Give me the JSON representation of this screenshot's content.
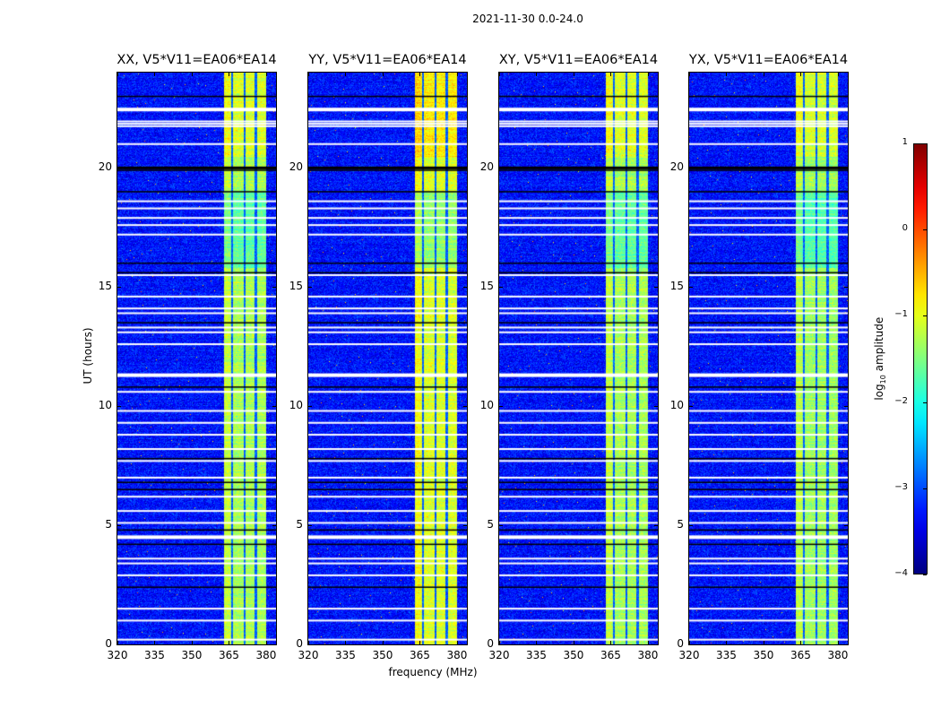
{
  "suptitle": "2021-11-30 0.0-24.0",
  "chart_data": {
    "type": "heatmap",
    "panels": [
      {
        "title": "XX, V5*V11=EA06*EA14",
        "band_boost": 0.0
      },
      {
        "title": "YY, V5*V11=EA06*EA14",
        "band_boost": 0.25
      },
      {
        "title": "XY, V5*V11=EA06*EA14",
        "band_boost": 0.0
      },
      {
        "title": "YX, V5*V11=EA06*EA14",
        "band_boost": -0.05
      }
    ],
    "xlabel": "frequency (MHz)",
    "ylabel": "UT (hours)",
    "xlim": [
      320,
      384
    ],
    "ylim": [
      0,
      24
    ],
    "xticks": [
      "320",
      "335",
      "350",
      "365",
      "380"
    ],
    "xtick_values": [
      320,
      335,
      350,
      365,
      380
    ],
    "yticks": [
      "0",
      "5",
      "10",
      "15",
      "20"
    ],
    "ytick_values": [
      0,
      5,
      10,
      15,
      20
    ],
    "colorbar": {
      "label_prefix": "log",
      "label_sub": "10",
      "label_suffix": " amplitude",
      "range": [
        -4,
        1
      ],
      "ticks": [
        "−4",
        "−3",
        "−2",
        "−1",
        "0",
        "1"
      ],
      "tick_values": [
        -4,
        -3,
        -2,
        -1,
        0,
        1
      ],
      "colormap": "jet"
    },
    "background_log_amplitude": -3.3,
    "band": {
      "start_mhz": 363,
      "end_mhz": 380,
      "log_amplitude": -1.3
    },
    "band_gaps_mhz": [
      366.3,
      371.3,
      375.8
    ],
    "flagged_white_hours": [
      22.45,
      21.95,
      21.85,
      21.75,
      21.0,
      18.6,
      18.3,
      17.9,
      17.6,
      17.2,
      15.5,
      14.6,
      14.1,
      13.9,
      13.3,
      13.1,
      12.6,
      11.3,
      10.6,
      9.8,
      9.3,
      8.8,
      8.2,
      7.7,
      7.0,
      6.2,
      5.6,
      5.1,
      4.5,
      3.6,
      3.4,
      2.9,
      1.5,
      1.0,
      0.2
    ],
    "flagged_black_hours": [
      23.0,
      20.0,
      19.9,
      19.0,
      16.0,
      15.6,
      13.5,
      10.8,
      7.8,
      6.8,
      6.5,
      4.8,
      4.2,
      2.4
    ]
  }
}
